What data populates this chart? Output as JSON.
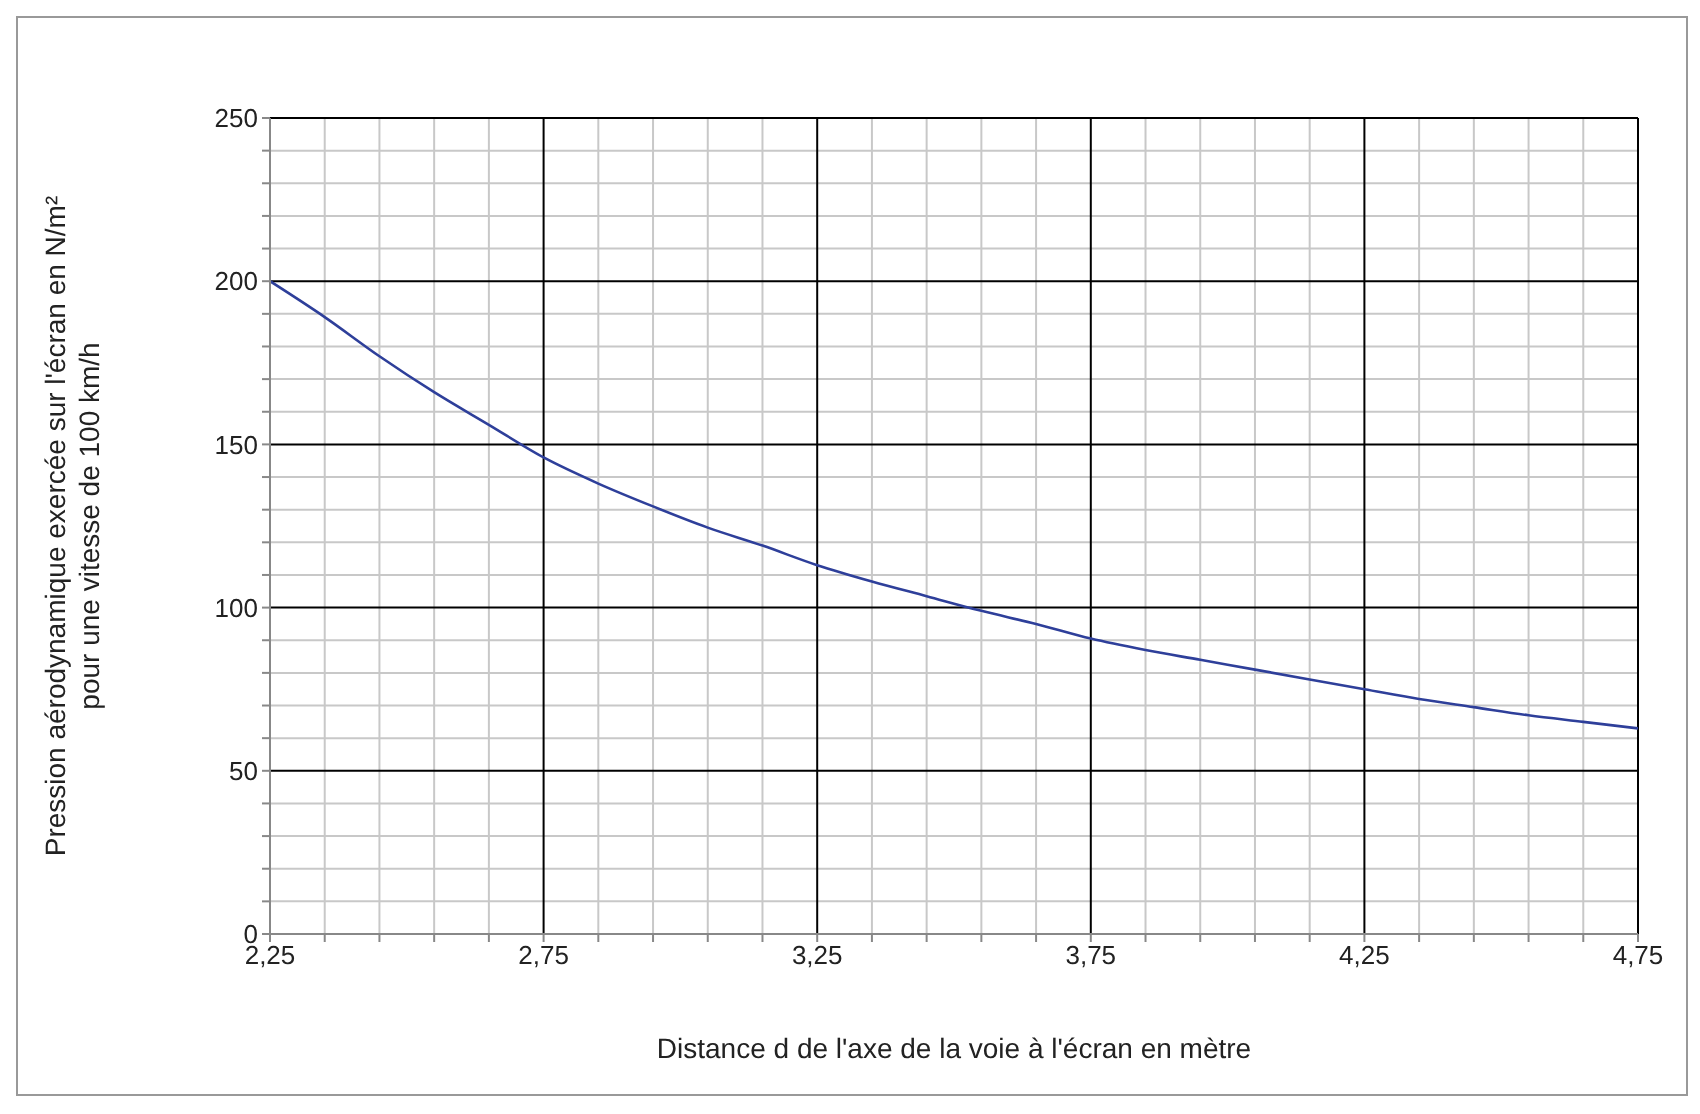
{
  "chart_data": {
    "type": "line",
    "xlabel": "Distance d de l'axe de la voie à l'écran en mètre",
    "ylabel": "Pression aérodynamique exercée sur l'écran en N/m²\npour une vitesse de 100 km/h",
    "x": [
      2.25,
      2.35,
      2.45,
      2.55,
      2.65,
      2.75,
      2.85,
      2.95,
      3.05,
      3.15,
      3.25,
      3.35,
      3.45,
      3.55,
      3.65,
      3.75,
      3.85,
      3.95,
      4.05,
      4.15,
      4.25,
      4.35,
      4.45,
      4.55,
      4.65,
      4.75
    ],
    "series": [
      {
        "color": "#2e3f9a",
        "values": [
          200,
          189,
          177,
          166,
          156,
          146,
          138,
          131,
          124.5,
          119,
          113,
          108,
          103.5,
          99,
          95,
          90.5,
          87,
          84,
          81,
          78,
          75,
          72,
          69.5,
          67,
          65,
          63
        ]
      }
    ],
    "xlim": [
      2.25,
      4.75
    ],
    "xticks": [
      {
        "value": 2.25,
        "label": "2,25"
      },
      {
        "value": 2.35,
        "label": null
      },
      {
        "value": 2.45,
        "label": null
      },
      {
        "value": 2.55,
        "label": null
      },
      {
        "value": 2.65,
        "label": null
      },
      {
        "value": 2.75,
        "label": "2,75"
      },
      {
        "value": 2.85,
        "label": null
      },
      {
        "value": 2.95,
        "label": null
      },
      {
        "value": 3.05,
        "label": null
      },
      {
        "value": 3.15,
        "label": null
      },
      {
        "value": 3.25,
        "label": "3,25"
      },
      {
        "value": 3.35,
        "label": null
      },
      {
        "value": 3.45,
        "label": null
      },
      {
        "value": 3.55,
        "label": null
      },
      {
        "value": 3.65,
        "label": null
      },
      {
        "value": 3.75,
        "label": "3,75"
      },
      {
        "value": 3.85,
        "label": null
      },
      {
        "value": 3.95,
        "label": null
      },
      {
        "value": 4.05,
        "label": null
      },
      {
        "value": 4.15,
        "label": null
      },
      {
        "value": 4.25,
        "label": "4,25"
      },
      {
        "value": 4.35,
        "label": null
      },
      {
        "value": 4.45,
        "label": null
      },
      {
        "value": 4.55,
        "label": null
      },
      {
        "value": 4.65,
        "label": null
      },
      {
        "value": 4.75,
        "label": "4,75"
      }
    ],
    "ylim": [
      0,
      250
    ],
    "yticks": [
      0,
      {
        "value": 10,
        "label": null
      },
      {
        "value": 20,
        "label": null
      },
      {
        "value": 30,
        "label": null
      },
      {
        "value": 40,
        "label": null
      },
      50,
      {
        "value": 60,
        "label": null
      },
      {
        "value": 70,
        "label": null
      },
      {
        "value": 80,
        "label": null
      },
      {
        "value": 90,
        "label": null
      },
      100,
      {
        "value": 110,
        "label": null
      },
      {
        "value": 120,
        "label": null
      },
      {
        "value": 130,
        "label": null
      },
      {
        "value": 140,
        "label": null
      },
      150,
      {
        "value": 160,
        "label": null
      },
      {
        "value": 170,
        "label": null
      },
      {
        "value": 180,
        "label": null
      },
      {
        "value": 190,
        "label": null
      },
      200,
      {
        "value": 210,
        "label": null
      },
      {
        "value": 220,
        "label": null
      },
      {
        "value": 230,
        "label": null
      },
      {
        "value": 240,
        "label": null
      },
      250
    ],
    "grid": true,
    "legend": false,
    "marker": "none",
    "line_style": "solid"
  }
}
